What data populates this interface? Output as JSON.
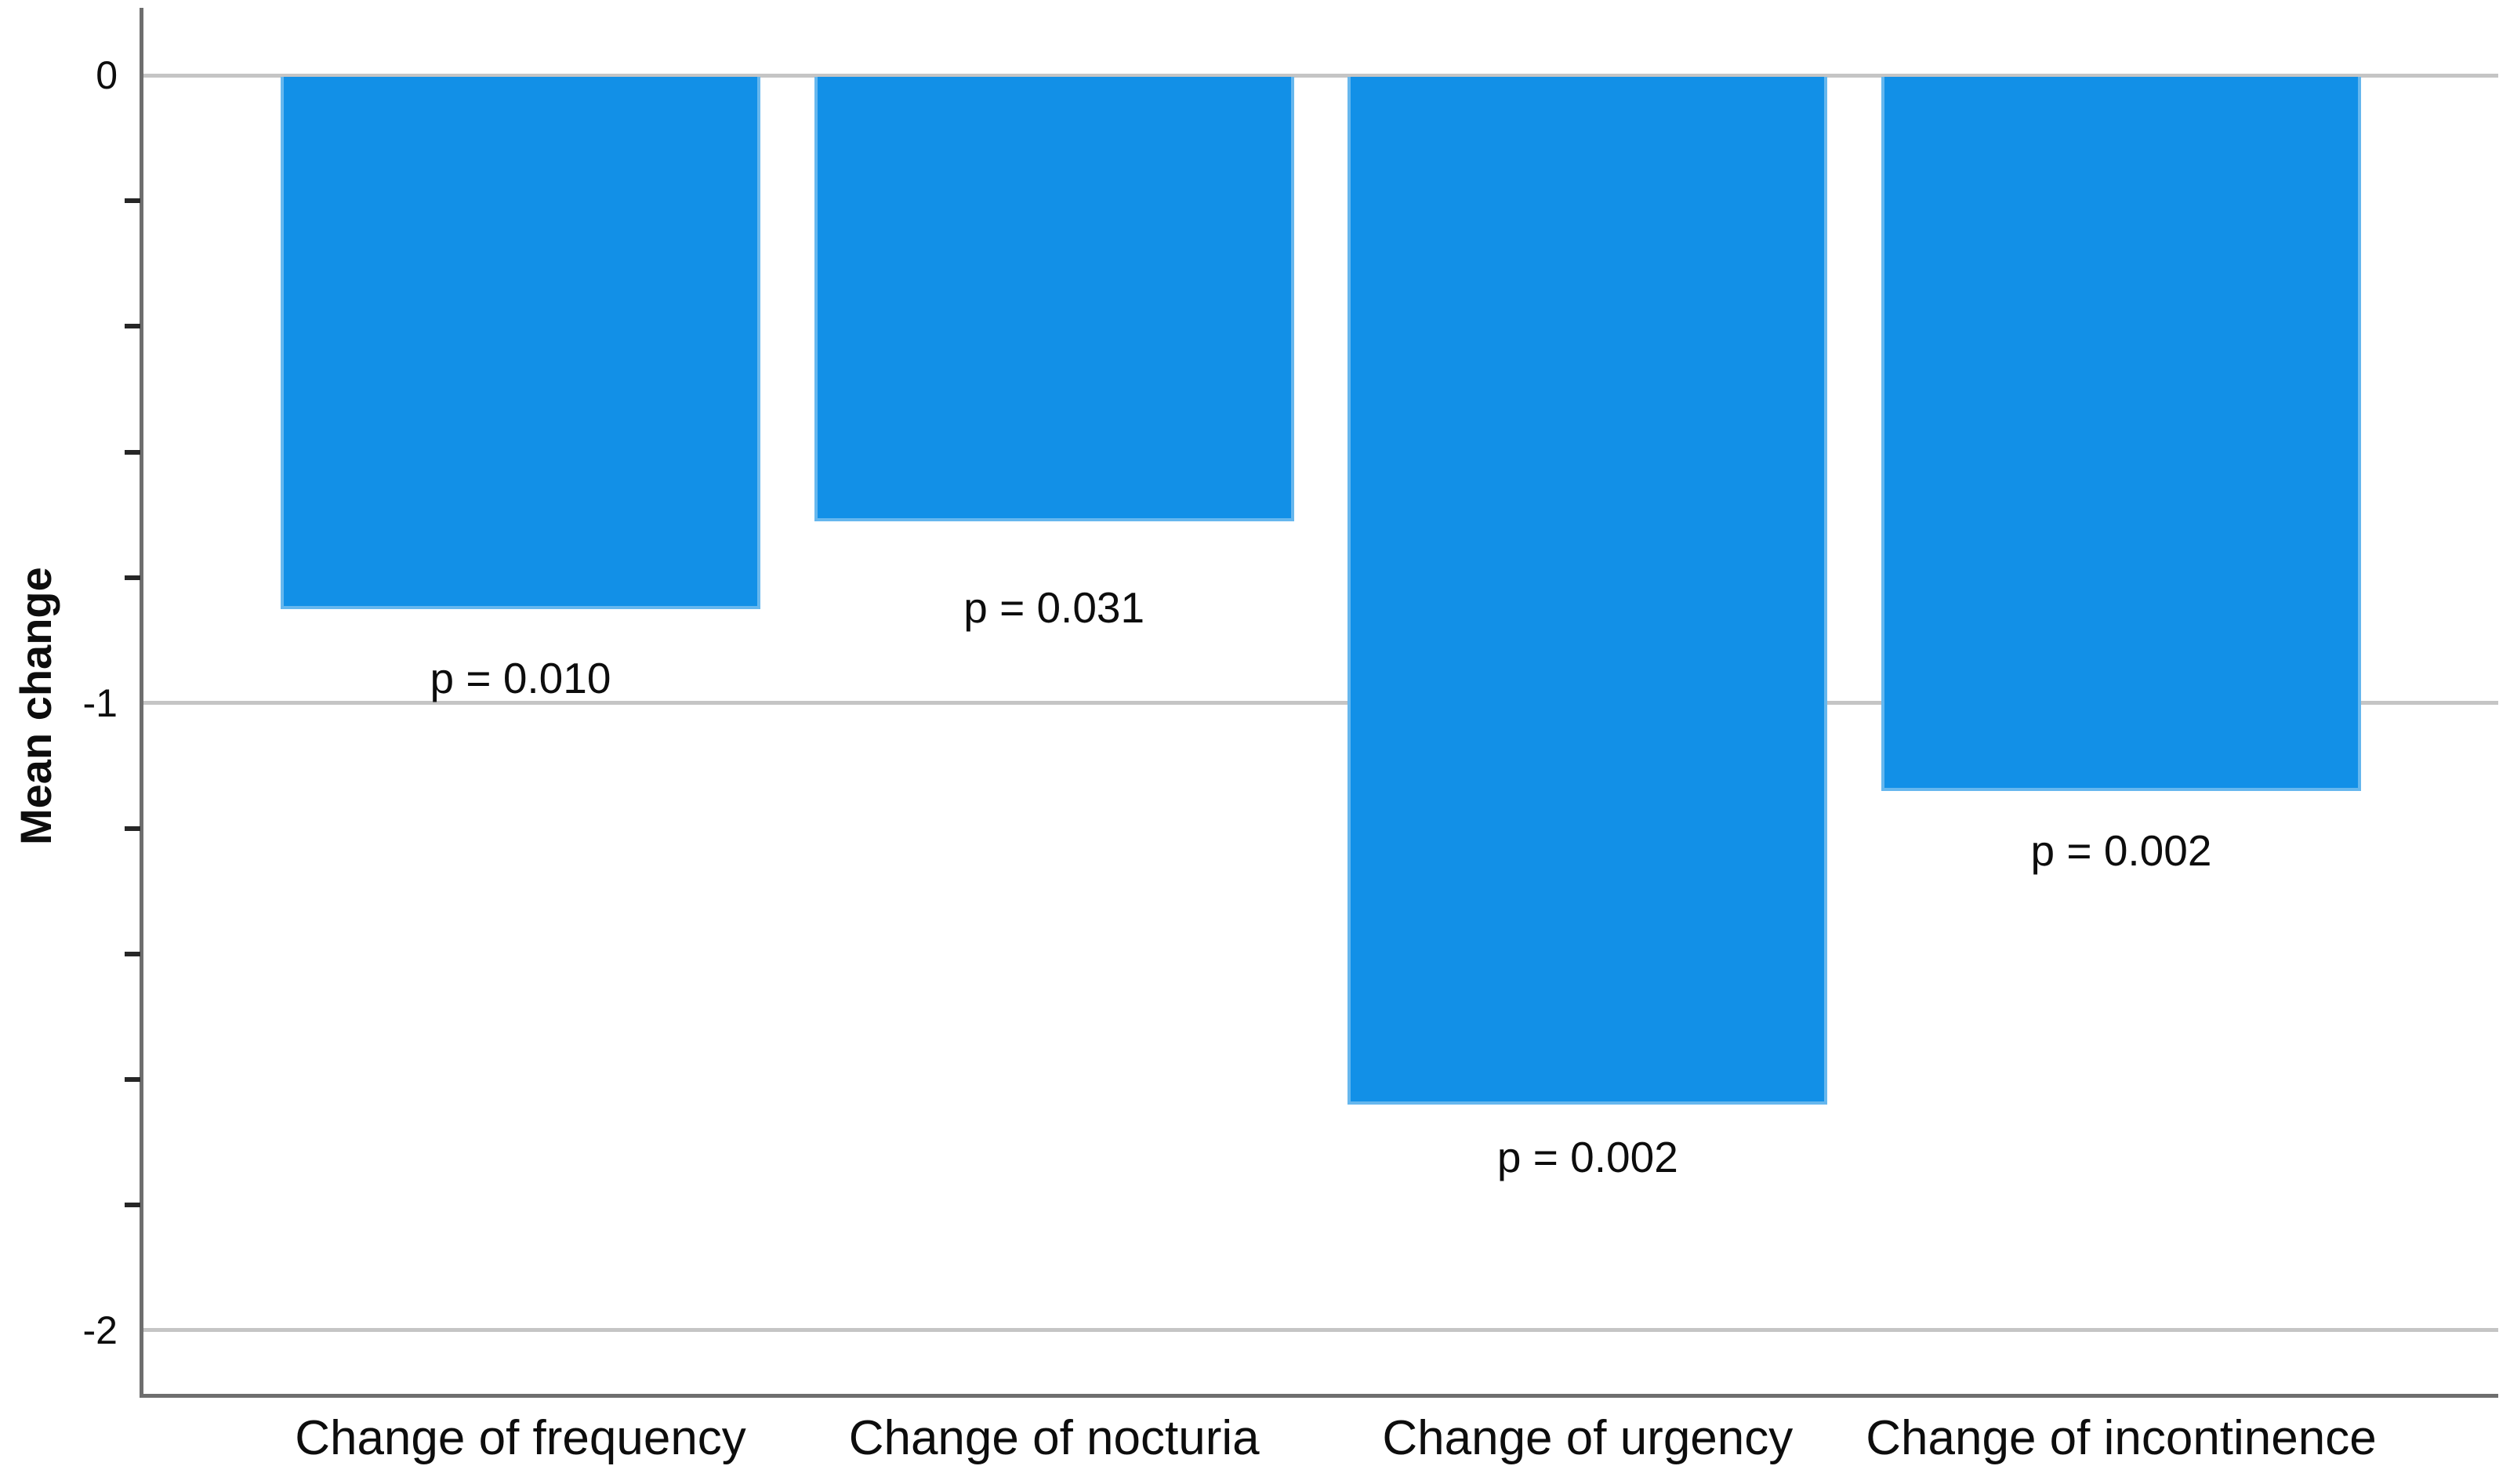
{
  "chart_data": {
    "type": "bar",
    "title": "",
    "xlabel": "",
    "ylabel": "Mean change",
    "categories": [
      "Change of frequency",
      "Change of nocturia",
      "Change of urgency",
      "Change of incontinence"
    ],
    "values": [
      -0.85,
      -0.71,
      -1.64,
      -1.14
    ],
    "bar_annotations": [
      "p = 0.010",
      "p = 0.031",
      "p = 0.002",
      "p = 0.002"
    ],
    "ylim": [
      -2.104,
      0.108
    ],
    "yticks": [
      0,
      -1,
      -2
    ],
    "ytick_labels": [
      "0",
      "-1",
      "-2"
    ],
    "minor_tick_step": 0.2,
    "grid": "horizontal-major-only",
    "legend": "none",
    "orientation": "vertical-negative",
    "bar_color": "#1290e7",
    "bar_edge_color": "#66b7ee",
    "grid_color": "#c5c5c5",
    "axis_color": "#6e6e6e",
    "text_color": "#0d0d0d"
  }
}
